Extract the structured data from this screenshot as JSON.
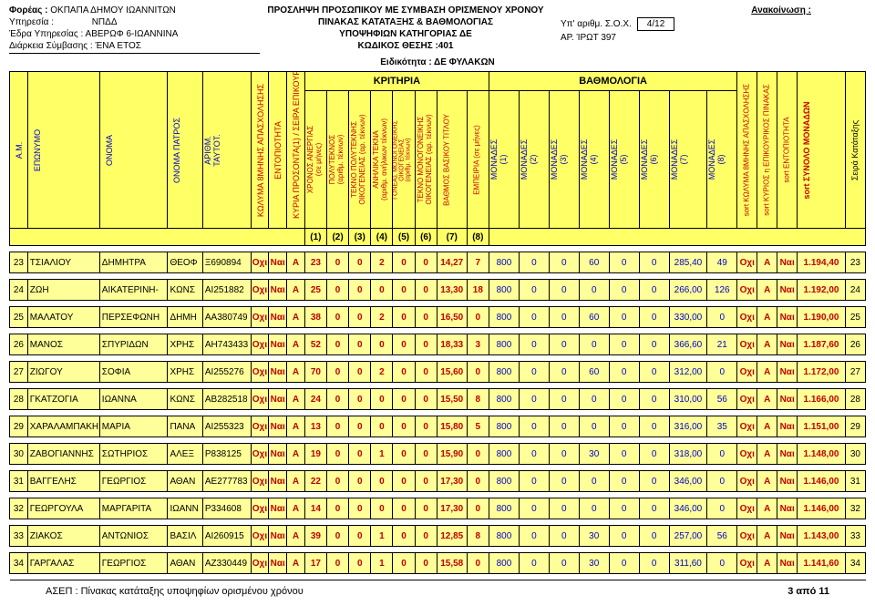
{
  "header": {
    "l1a": "Φορέας :",
    "l1b": "ΟΚΠΑΠΑ ΔΗΜΟΥ ΙΩΑΝΝΙΤΩΝ",
    "l2a": "Υπηρεσία :",
    "l2b": "ΝΠΔΔ",
    "l3a": "Έδρα Υπηρεσίας :",
    "l3b": "ΑΒΕΡΩΦ 6-ΙΩΑΝΝΙΝΑ",
    "l4a": "Διάρκεια Σύμβασης :",
    "l4b": "ΈΝΑ ΕΤΟΣ",
    "m1": "ΠΡΟΣΛΗΨΗ ΠΡΟΣΩΠΙΚΟΥ ΜΕ ΣΥΜΒΑΣΗ ΟΡΙΣΜΕΝΟΥ ΧΡΟΝΟΥ",
    "m2": "ΠΙΝΑΚΑΣ ΚΑΤΑΤΑΞΗΣ & ΒΑΘΜΟΛΟΓΙΑΣ",
    "m3": "ΥΠΟΨΗΦΙΩΝ ΚΑΤΗΓΟΡΙΑΣ ΔΕ",
    "m4": "ΚΩΔΙΚΟΣ ΘΕΣΗΣ :401",
    "spec": "Ειδικότητα :  ΔΕ ΦΥΛΑΚΩΝ",
    "ann": "Ανακοίνωση :",
    "r1a": "Υπ' αριθμ. Σ.Ο.Χ.",
    "r1b": "4/12",
    "r2a": "ΑΡ. ΊΡΩΤ",
    "r2b": "397"
  },
  "groups": {
    "g1": "ΚΡΙΤΗΡΙΑ",
    "g2": "ΒΑΘΜΟΛΟΓΙΑ"
  },
  "cols": {
    "c1": "Α.Μ.",
    "c2": "ΕΠΩΝΥΜΟ",
    "c3": "ΟΝΟΜΑ",
    "c4": "ΟΝΟΜΑ ΠΑΤΡΟΣ",
    "c5": "ΑΡΙΘΜ.\nΤΑΥΤΟΤ.",
    "c6": "ΚΩΛΥΜΑ 8ΜΗΝΗΣ ΑΠΑΣΧΟΛΗΣΗΣ",
    "c7": "ΕΝΤΟΠΙΟΤΗΤΑ",
    "c8": "ΚΥΡΙΑ ΠΡΟΣΟΝΤΑ(1) / ΣΕΙΡΑ ΕΠΙΚΟΥΡΙΑΣ",
    "c9": "ΧΡΟΝΟΣ ΑΝΕΡΓΙΑΣ\n(σε μήνες)",
    "c10": "ΠΟΛΥΤΕΚΝΟΣ\n(αριθμ. τέκνων)",
    "c11": "ΤΕΚΝΟ ΠΟΛΥΤΕΚΝΗΣ\nΟΙΚΟΓΕΝΕΙΑΣ (αρ. τέκνων)",
    "c12": "ΑΝΗΛΙΚΑ ΤΕΚΝΑ\n(αριθμ. ανήλικων τέκνων)",
    "c13": "ΓΟΝΕΑΣ ΜΟΝΟΓΟΝΕΙΚΗΣ\nΟΙΚΟΓΕΝΕΙΑΣ\n(αριθμ. τέκνων)",
    "c14": "ΤΕΚΝΟ ΜΟΝΟΓΟΝΕΙΚΗΣ\nΟΙΚΟΓΕΝΕΙΑΣ (αρ. τέκνων)",
    "c15": "ΒΑΘΜΟΣ ΒΑΣΙΚΟΥ ΤΙΤΛΟΥ",
    "c16": "ΕΜΠΕΙΡΙΑ (σε μήνες)",
    "m1": "ΜΟΝΑΔΕΣ\n(1)",
    "m2": "ΜΟΝΑΔΕΣ\n(2)",
    "m3": "ΜΟΝΑΔΕΣ\n(3)",
    "m4": "ΜΟΝΑΔΕΣ\n(4)",
    "m5": "ΜΟΝΑΔΕΣ\n(5)",
    "m6": "ΜΟΝΑΔΕΣ\n(6)",
    "m7": "ΜΟΝΑΔΕΣ\n(7)",
    "m8": "ΜΟΝΑΔΕΣ\n(8)",
    "s1": "sort ΚΩΛΥΜΑ 8ΜΗΝΗΣ ΑΠΑΣΧΟΛΗΣΗΣ",
    "s2": "sort ΚΥΡΙΟΣ η ΕΠΙΚΟΥΡΙΚΟΣ ΠΙΝΑΚΑΣ",
    "s3": "sort ΕΝΤΟΠΙΟΤΗΤΑ",
    "s4": "sort ΣΥΝΟΛΟ ΜΟΝΑΔΩΝ",
    "s5": "Σειρά Κατάταξης"
  },
  "subnums": [
    "(1)",
    "(2)",
    "(3)",
    "(4)",
    "(5)",
    "(6)",
    "(7)",
    "(8)"
  ],
  "rows": [
    {
      "am": "23",
      "ep": "ΤΣΙΑΛΙΟΥ",
      "on": "ΔΗΜΗΤΡΑ",
      "pa": "ΘΕΟΦ",
      "id": "Ξ690894",
      "k8": "Οχι",
      "ent": "Ναι",
      "kp": "Α",
      "v": [
        "23",
        "0",
        "0",
        "2",
        "0",
        "0",
        "14,27",
        "7"
      ],
      "m": [
        "800",
        "0",
        "0",
        "60",
        "0",
        "0",
        "285,40",
        "49"
      ],
      "s": [
        "Οχι",
        "Α",
        "Ναι",
        "1.194,40"
      ],
      "rk": "23"
    },
    {
      "am": "24",
      "ep": "ΖΩΗ",
      "on": "ΑΙΚΑΤΕΡΙΝΗ-",
      "pa": "ΚΩΝΣ",
      "id": "ΑΙ251882",
      "k8": "Οχι",
      "ent": "Ναι",
      "kp": "Α",
      "v": [
        "25",
        "0",
        "0",
        "0",
        "0",
        "0",
        "13,30",
        "18"
      ],
      "m": [
        "800",
        "0",
        "0",
        "0",
        "0",
        "0",
        "266,00",
        "126"
      ],
      "s": [
        "Οχι",
        "Α",
        "Ναι",
        "1.192,00"
      ],
      "rk": "24"
    },
    {
      "am": "25",
      "ep": "ΜΑΛΑΤΟΥ",
      "on": "ΠΕΡΣΕΦΩΝΗ",
      "pa": "ΔΗΜΗ",
      "id": "ΑΑ380749",
      "k8": "Οχι",
      "ent": "Ναι",
      "kp": "Α",
      "v": [
        "38",
        "0",
        "0",
        "2",
        "0",
        "0",
        "16,50",
        "0"
      ],
      "m": [
        "800",
        "0",
        "0",
        "60",
        "0",
        "0",
        "330,00",
        "0"
      ],
      "s": [
        "Οχι",
        "Α",
        "Ναι",
        "1.190,00"
      ],
      "rk": "25"
    },
    {
      "am": "26",
      "ep": "ΜΑΝΟΣ",
      "on": "ΣΠΥΡΙΔΩΝ",
      "pa": "ΧΡΗΣ",
      "id": "ΑΗ743433",
      "k8": "Οχι",
      "ent": "Ναι",
      "kp": "Α",
      "v": [
        "52",
        "0",
        "0",
        "0",
        "0",
        "0",
        "18,33",
        "3"
      ],
      "m": [
        "800",
        "0",
        "0",
        "0",
        "0",
        "0",
        "366,60",
        "21"
      ],
      "s": [
        "Οχι",
        "Α",
        "Ναι",
        "1.187,60"
      ],
      "rk": "26"
    },
    {
      "am": "27",
      "ep": "ΖΙΩΓΟΥ",
      "on": "ΣΟΦΙΑ",
      "pa": "ΧΡΗΣ",
      "id": "ΑΙ255276",
      "k8": "Οχι",
      "ent": "Ναι",
      "kp": "Α",
      "v": [
        "70",
        "0",
        "0",
        "2",
        "0",
        "0",
        "15,60",
        "0"
      ],
      "m": [
        "800",
        "0",
        "0",
        "60",
        "0",
        "0",
        "312,00",
        "0"
      ],
      "s": [
        "Οχι",
        "Α",
        "Ναι",
        "1.172,00"
      ],
      "rk": "27"
    },
    {
      "am": "28",
      "ep": "ΓΚΑΤΖΟΓΙΑ",
      "on": "ΙΩΑΝΝΑ",
      "pa": "ΚΩΝΣ",
      "id": "ΑΒ282518",
      "k8": "Οχι",
      "ent": "Ναι",
      "kp": "Α",
      "v": [
        "24",
        "0",
        "0",
        "0",
        "0",
        "0",
        "15,50",
        "8"
      ],
      "m": [
        "800",
        "0",
        "0",
        "0",
        "0",
        "0",
        "310,00",
        "56"
      ],
      "s": [
        "Οχι",
        "Α",
        "Ναι",
        "1.166,00"
      ],
      "rk": "28"
    },
    {
      "am": "29",
      "ep": "ΧΑΡΑΛΑΜΠΑΚΗ",
      "on": "ΜΑΡΙΑ",
      "pa": "ΠΑΝΑ",
      "id": "ΑΙ255323",
      "k8": "Οχι",
      "ent": "Ναι",
      "kp": "Α",
      "v": [
        "13",
        "0",
        "0",
        "0",
        "0",
        "0",
        "15,80",
        "5"
      ],
      "m": [
        "800",
        "0",
        "0",
        "0",
        "0",
        "0",
        "316,00",
        "35"
      ],
      "s": [
        "Οχι",
        "Α",
        "Ναι",
        "1.151,00"
      ],
      "rk": "29"
    },
    {
      "am": "30",
      "ep": "ΖΑΒΟΓΙΑΝΝΗΣ",
      "on": "ΣΩΤΗΡΙΟΣ",
      "pa": "ΑΛΕΞ",
      "id": "Ρ838125",
      "k8": "Οχι",
      "ent": "Ναι",
      "kp": "Α",
      "v": [
        "19",
        "0",
        "0",
        "1",
        "0",
        "0",
        "15,90",
        "0"
      ],
      "m": [
        "800",
        "0",
        "0",
        "30",
        "0",
        "0",
        "318,00",
        "0"
      ],
      "s": [
        "Οχι",
        "Α",
        "Ναι",
        "1.148,00"
      ],
      "rk": "30"
    },
    {
      "am": "31",
      "ep": "ΒΑΓΓΕΛΗΣ",
      "on": "ΓΕΩΡΓΙΟΣ",
      "pa": "ΑΘΑΝ",
      "id": "ΑΕ277783",
      "k8": "Οχι",
      "ent": "Ναι",
      "kp": "Α",
      "v": [
        "22",
        "0",
        "0",
        "0",
        "0",
        "0",
        "17,30",
        "0"
      ],
      "m": [
        "800",
        "0",
        "0",
        "0",
        "0",
        "0",
        "346,00",
        "0"
      ],
      "s": [
        "Οχι",
        "Α",
        "Ναι",
        "1.146,00"
      ],
      "rk": "31"
    },
    {
      "am": "32",
      "ep": "ΓΕΩΡΓΟΥΛΑ",
      "on": "ΜΑΡΓΑΡΙΤΑ",
      "pa": "ΙΩΑΝΝ",
      "id": "Ρ334608",
      "k8": "Οχι",
      "ent": "Ναι",
      "kp": "Α",
      "v": [
        "14",
        "0",
        "0",
        "0",
        "0",
        "0",
        "17,30",
        "0"
      ],
      "m": [
        "800",
        "0",
        "0",
        "0",
        "0",
        "0",
        "346,00",
        "0"
      ],
      "s": [
        "Οχι",
        "Α",
        "Ναι",
        "1.146,00"
      ],
      "rk": "32"
    },
    {
      "am": "33",
      "ep": "ΖΙΑΚΟΣ",
      "on": "ΑΝΤΩΝΙΟΣ",
      "pa": "ΒΑΣΙΛ",
      "id": "ΑΙ260915",
      "k8": "Οχι",
      "ent": "Ναι",
      "kp": "Α",
      "v": [
        "39",
        "0",
        "0",
        "1",
        "0",
        "0",
        "12,85",
        "8"
      ],
      "m": [
        "800",
        "0",
        "0",
        "30",
        "0",
        "0",
        "257,00",
        "56"
      ],
      "s": [
        "Οχι",
        "Α",
        "Ναι",
        "1.143,00"
      ],
      "rk": "33"
    },
    {
      "am": "34",
      "ep": "ΓΑΡΓΑΛΑΣ",
      "on": "ΓΕΩΡΓΙΟΣ",
      "pa": "ΑΘΑΝ",
      "id": "ΑΖ330449",
      "k8": "Οχι",
      "ent": "Ναι",
      "kp": "Α",
      "v": [
        "17",
        "0",
        "0",
        "1",
        "0",
        "0",
        "15,58",
        "0"
      ],
      "m": [
        "800",
        "0",
        "0",
        "30",
        "0",
        "0",
        "311,60",
        "0"
      ],
      "s": [
        "Οχι",
        "Α",
        "Ναι",
        "1.141,60"
      ],
      "rk": "34"
    }
  ],
  "footer": {
    "l": "ΑΣΕΠ : Πίνακας κατάταξης  υποψηφίων ορισμένου χρόνου",
    "r": "3 από 11"
  }
}
